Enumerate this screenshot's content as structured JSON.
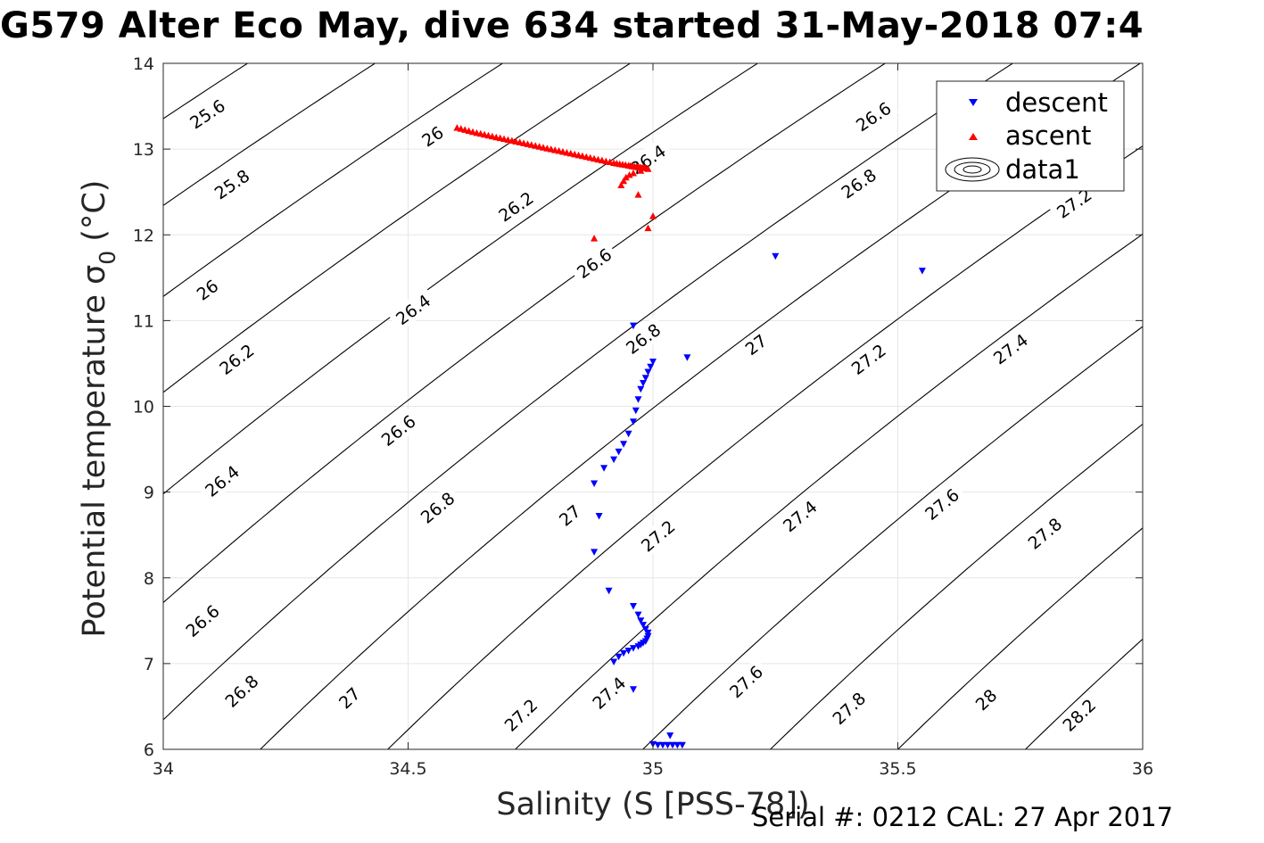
{
  "title": "G579 Alter Eco May, dive 634 started 31-May-2018 07:4",
  "footer": "Serial #: 0212  CAL: 27 Apr 2017",
  "colors": {
    "descent": "#0000ff",
    "ascent": "#ff0000",
    "contour": "#000000",
    "grid": "#e6e6e6"
  },
  "chart_data": {
    "type": "scatter",
    "xlabel": "Salinity (S [PSS-78])",
    "ylabel": "Potential temperature σ",
    "ylabel_subscript": "0",
    "ylabel_suffix": "(°C)",
    "xlim": [
      34,
      36
    ],
    "ylim": [
      6,
      14
    ],
    "xticks": [
      34,
      34.5,
      35,
      35.5,
      36
    ],
    "xtick_labels": [
      "34",
      "34.5",
      "35",
      "35.5",
      "36"
    ],
    "yticks": [
      6,
      7,
      8,
      9,
      10,
      11,
      12,
      13,
      14
    ],
    "ytick_labels": [
      "6",
      "7",
      "8",
      "9",
      "10",
      "11",
      "12",
      "13",
      "14"
    ],
    "grid": true,
    "legend_position": "top-right",
    "legend": [
      "descent",
      "ascent",
      "data1"
    ],
    "contour_levels": [
      25.6,
      25.8,
      26,
      26.2,
      26.4,
      26.6,
      26.8,
      27,
      27.2,
      27.4,
      27.6,
      27.8,
      28,
      28.2
    ],
    "contour_labels": [
      {
        "text": "25.6",
        "x": 34.09,
        "y": 13.41
      },
      {
        "text": "25.8",
        "x": 34.14,
        "y": 12.59
      },
      {
        "text": "26",
        "x": 34.09,
        "y": 11.36
      },
      {
        "text": "26.2",
        "x": 34.15,
        "y": 10.55
      },
      {
        "text": "26.4",
        "x": 34.12,
        "y": 9.13
      },
      {
        "text": "26.6",
        "x": 34.08,
        "y": 7.5
      },
      {
        "text": "26.8",
        "x": 34.16,
        "y": 6.68
      },
      {
        "text": "26",
        "x": 34.55,
        "y": 13.15
      },
      {
        "text": "26.2",
        "x": 34.72,
        "y": 12.33
      },
      {
        "text": "26.4",
        "x": 34.51,
        "y": 11.13
      },
      {
        "text": "26.6",
        "x": 34.48,
        "y": 9.72
      },
      {
        "text": "26.8",
        "x": 34.56,
        "y": 8.82
      },
      {
        "text": "27",
        "x": 34.38,
        "y": 6.6
      },
      {
        "text": "27",
        "x": 34.83,
        "y": 8.73
      },
      {
        "text": "27.2",
        "x": 34.73,
        "y": 6.4
      },
      {
        "text": "26.4",
        "x": 34.99,
        "y": 12.88
      },
      {
        "text": "26.6",
        "x": 34.88,
        "y": 11.67
      },
      {
        "text": "26.8",
        "x": 34.98,
        "y": 10.79
      },
      {
        "text": "27.2",
        "x": 35.01,
        "y": 8.49
      },
      {
        "text": "27.4",
        "x": 34.91,
        "y": 6.66
      },
      {
        "text": "26.6",
        "x": 35.45,
        "y": 13.38
      },
      {
        "text": "26.8",
        "x": 35.42,
        "y": 12.6
      },
      {
        "text": "27",
        "x": 35.21,
        "y": 10.72
      },
      {
        "text": "27.2",
        "x": 35.44,
        "y": 10.55
      },
      {
        "text": "27.4",
        "x": 35.3,
        "y": 8.72
      },
      {
        "text": "27.6",
        "x": 35.19,
        "y": 6.79
      },
      {
        "text": "27.8",
        "x": 35.4,
        "y": 6.48
      },
      {
        "text": "27.2",
        "x": 35.86,
        "y": 12.37
      },
      {
        "text": "27.4",
        "x": 35.73,
        "y": 10.67
      },
      {
        "text": "27.6",
        "x": 35.59,
        "y": 8.86
      },
      {
        "text": "27.8",
        "x": 35.8,
        "y": 8.52
      },
      {
        "text": "28",
        "x": 35.68,
        "y": 6.58
      },
      {
        "text": "28.2",
        "x": 35.87,
        "y": 6.4
      }
    ],
    "series": [
      {
        "name": "descent",
        "marker": "triangle-down",
        "x": [
          35.25,
          35.55,
          34.96,
          35.07,
          35.0,
          34.995,
          34.99,
          34.985,
          34.98,
          34.975,
          34.97,
          34.965,
          34.96,
          34.95,
          34.94,
          34.93,
          34.92,
          34.9,
          34.88,
          34.89,
          34.88,
          34.91,
          34.96,
          34.97,
          34.975,
          34.98,
          34.985,
          34.99,
          34.99,
          34.988,
          34.985,
          34.98,
          34.975,
          34.97,
          34.96,
          34.95,
          34.94,
          34.93,
          34.92,
          34.96,
          35.0,
          35.01,
          35.02,
          35.03,
          35.04,
          35.05,
          35.06,
          35.035
        ],
        "y": [
          11.75,
          11.58,
          10.94,
          10.57,
          10.52,
          10.46,
          10.4,
          10.33,
          10.27,
          10.2,
          10.08,
          9.95,
          9.82,
          9.68,
          9.56,
          9.47,
          9.38,
          9.28,
          9.1,
          8.72,
          8.3,
          7.85,
          7.67,
          7.57,
          7.5,
          7.45,
          7.4,
          7.36,
          7.32,
          7.29,
          7.26,
          7.24,
          7.22,
          7.2,
          7.18,
          7.15,
          7.12,
          7.08,
          7.02,
          6.7,
          6.06,
          6.05,
          6.05,
          6.05,
          6.05,
          6.05,
          6.05,
          6.16
        ]
      },
      {
        "name": "ascent",
        "marker": "triangle-up",
        "x": [
          34.6,
          34.64,
          34.68,
          34.72,
          34.76,
          34.8,
          34.84,
          34.88,
          34.92,
          34.95,
          34.97,
          34.985,
          34.99,
          34.975,
          34.96,
          34.952,
          34.945,
          34.94,
          34.935,
          34.97,
          35.0,
          34.99,
          34.88
        ],
        "y": [
          13.25,
          13.19,
          13.14,
          13.09,
          13.04,
          12.99,
          12.94,
          12.89,
          12.84,
          12.81,
          12.79,
          12.78,
          12.77,
          12.75,
          12.72,
          12.7,
          12.67,
          12.63,
          12.58,
          12.47,
          12.22,
          12.08,
          11.96
        ]
      }
    ]
  }
}
